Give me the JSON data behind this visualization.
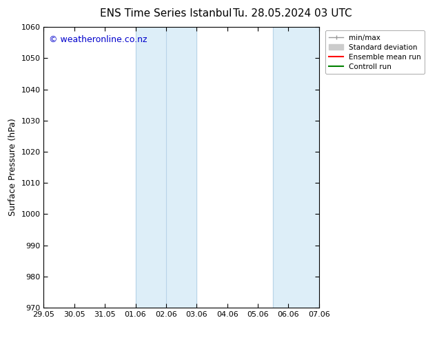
{
  "title": "ENS Time Series Istanbul",
  "title2": "Tu. 28.05.2024 03 UTC",
  "ylabel": "Surface Pressure (hPa)",
  "ylim": [
    970,
    1060
  ],
  "yticks": [
    970,
    980,
    990,
    1000,
    1010,
    1020,
    1030,
    1040,
    1050,
    1060
  ],
  "xtick_labels": [
    "29.05",
    "30.05",
    "31.05",
    "01.06",
    "02.06",
    "03.06",
    "04.06",
    "05.06",
    "06.06",
    "07.06"
  ],
  "xtick_positions": [
    0,
    1,
    2,
    3,
    4,
    5,
    6,
    7,
    8,
    9
  ],
  "shaded_regions": [
    {
      "x_start": 3,
      "x_end": 5,
      "color": "#ddeef8"
    },
    {
      "x_start": 7.5,
      "x_end": 9,
      "color": "#ddeef8"
    }
  ],
  "shade_vlines": [
    3,
    4,
    5,
    7.5,
    9
  ],
  "vline_color": "#b8d4e8",
  "background_color": "#ffffff",
  "watermark_text": "© weatheronline.co.nz",
  "watermark_color": "#0000cc",
  "legend_items": [
    {
      "label": "min/max",
      "color": "#999999",
      "lw": 1
    },
    {
      "label": "Standard deviation",
      "color": "#cccccc",
      "lw": 6
    },
    {
      "label": "Ensemble mean run",
      "color": "#ff0000",
      "lw": 1.5
    },
    {
      "label": "Controll run",
      "color": "#008000",
      "lw": 1.5
    }
  ],
  "font_size": 9,
  "title_font_size": 11,
  "tick_font_size": 8
}
